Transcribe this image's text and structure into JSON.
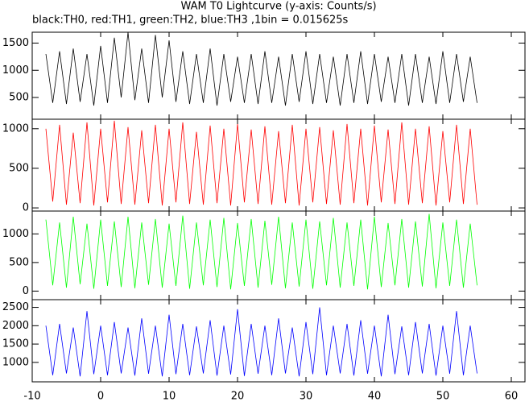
{
  "chart_data": {
    "type": "line",
    "title": "WAM T0 Lightcurve (y-axis: Counts/s)",
    "subtitle": "black:TH0, red:TH1, green:TH2, blue:TH3 ,1bin = 0.015625s",
    "xlim": [
      -10,
      62
    ],
    "xticks": [
      -10,
      0,
      10,
      20,
      30,
      40,
      50,
      60
    ],
    "x": [
      -8,
      -7,
      -6,
      -5,
      -4,
      -3,
      -2,
      -1,
      0,
      1,
      2,
      3,
      4,
      5,
      6,
      7,
      8,
      9,
      10,
      11,
      12,
      13,
      14,
      15,
      16,
      17,
      18,
      19,
      20,
      21,
      22,
      23,
      24,
      25,
      26,
      27,
      28,
      29,
      30,
      31,
      32,
      33,
      34,
      35,
      36,
      37,
      38,
      39,
      40,
      41,
      42,
      43,
      44,
      45,
      46,
      47,
      48,
      49,
      50,
      51,
      52,
      53,
      54,
      55
    ],
    "series": [
      {
        "color": "#000000",
        "ylim": [
          100,
          1700
        ],
        "yticks": [
          500,
          1000,
          1500
        ],
        "values": [
          1300,
          400,
          1350,
          380,
          1400,
          420,
          1300,
          350,
          1450,
          400,
          1600,
          500,
          1700,
          450,
          1400,
          400,
          1650,
          500,
          1550,
          420,
          1350,
          380,
          1300,
          400,
          1400,
          350,
          1300,
          420,
          1250,
          400,
          1300,
          380,
          1350,
          400,
          1250,
          350,
          1300,
          420,
          1350,
          380,
          1300,
          400,
          1250,
          350,
          1300,
          400,
          1350,
          380,
          1300,
          420,
          1250,
          400,
          1300,
          350,
          1300,
          400,
          1250,
          380,
          1350,
          400,
          1300,
          420,
          1250,
          400
        ]
      },
      {
        "color": "#ff0000",
        "ylim": [
          -40,
          1120
        ],
        "yticks": [
          0,
          500,
          1000
        ],
        "values": [
          1000,
          80,
          1050,
          40,
          950,
          60,
          1080,
          30,
          1000,
          70,
          1100,
          50,
          1020,
          40,
          980,
          60,
          1050,
          30,
          1000,
          70,
          1080,
          50,
          960,
          40,
          1040,
          60,
          1000,
          30,
          1060,
          70,
          990,
          50,
          1030,
          40,
          970,
          60,
          1050,
          30,
          1000,
          70,
          1020,
          50,
          980,
          40,
          1060,
          60,
          1000,
          30,
          1040,
          70,
          990,
          50,
          1080,
          40,
          1000,
          60,
          1030,
          30,
          970,
          70,
          1050,
          50,
          1000,
          40
        ]
      },
      {
        "color": "#00ff00",
        "ylim": [
          -150,
          1400
        ],
        "yticks": [
          0,
          500,
          1000
        ],
        "values": [
          1250,
          100,
          1200,
          60,
          1300,
          120,
          1180,
          40,
          1250,
          90,
          1220,
          70,
          1300,
          50,
          1200,
          110,
          1260,
          60,
          1180,
          90,
          1320,
          40,
          1200,
          100,
          1250,
          70,
          1280,
          30,
          1190,
          90,
          1260,
          60,
          1230,
          110,
          1300,
          50,
          1200,
          80,
          1250,
          40,
          1220,
          100,
          1280,
          60,
          1200,
          90,
          1250,
          30,
          1300,
          70,
          1190,
          100,
          1260,
          60,
          1220,
          80,
          1350,
          50,
          1200,
          90,
          1250,
          60,
          1180,
          100
        ]
      },
      {
        "color": "#0000ff",
        "ylim": [
          470,
          2710
        ],
        "yticks": [
          1000,
          1500,
          2000,
          2500
        ],
        "values": [
          2000,
          650,
          2050,
          700,
          1950,
          620,
          2400,
          680,
          2000,
          650,
          2100,
          700,
          1950,
          640,
          2200,
          690,
          2000,
          620,
          2300,
          680,
          2050,
          650,
          1980,
          700,
          2150,
          640,
          2000,
          670,
          2450,
          630,
          2050,
          690,
          2000,
          650,
          2200,
          700,
          1950,
          620,
          2100,
          680,
          2500,
          650,
          2000,
          700,
          2050,
          640,
          2150,
          690,
          2000,
          620,
          2300,
          680,
          1980,
          650,
          2100,
          700,
          2050,
          640,
          2000,
          690,
          2400,
          650,
          2000,
          700
        ]
      }
    ]
  }
}
